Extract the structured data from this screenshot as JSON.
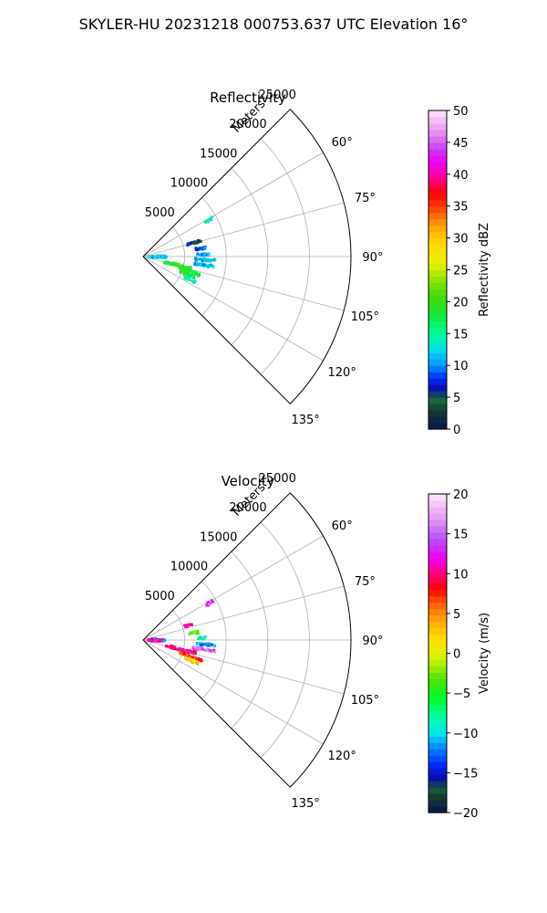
{
  "figure": {
    "suptitle": "SKYLER-HU  20231218  000753.637 UTC Elevation 16°"
  },
  "chart_data": [
    {
      "type": "polar-sector",
      "title": "Reflectivity",
      "radial_label": "Meters",
      "theta_ticks_deg": [
        60,
        75,
        90,
        105,
        120,
        135
      ],
      "theta_range_deg": [
        45,
        135
      ],
      "r_ticks": [
        5000,
        10000,
        15000,
        20000,
        25000
      ],
      "r_lim": [
        0,
        25000
      ],
      "grid": true,
      "colorbar": {
        "label": "Reflectivity dBZ",
        "min": 0,
        "max": 50,
        "ticks": [
          0,
          5,
          10,
          15,
          20,
          25,
          30,
          35,
          40,
          45,
          50
        ],
        "colormap": "pyart_HomeyerRainbow-like"
      },
      "echoes": [
        {
          "theta": 61,
          "r_range": [
            8500,
            9600
          ],
          "value": 14
        },
        {
          "theta": 75,
          "r_range": [
            5500,
            7200
          ],
          "value": 5
        },
        {
          "theta": 82,
          "r_range": [
            6300,
            7600
          ],
          "value": 8
        },
        {
          "theta": 88,
          "r_range": [
            6500,
            8000
          ],
          "value": 10
        },
        {
          "theta": 91,
          "r_range": [
            700,
            2800
          ],
          "value": 12
        },
        {
          "theta": 93,
          "r_range": [
            6200,
            8700
          ],
          "value": 12
        },
        {
          "theta": 98,
          "r_range": [
            6200,
            8600
          ],
          "value": 12
        },
        {
          "theta": 104,
          "r_range": [
            2600,
            6000
          ],
          "value": 19
        },
        {
          "theta": 108,
          "r_range": [
            4500,
            7200
          ],
          "value": 18
        },
        {
          "theta": 112,
          "r_range": [
            4800,
            6700
          ],
          "value": 19
        },
        {
          "theta": 116,
          "r_range": [
            5600,
            7000
          ],
          "value": 13
        }
      ]
    },
    {
      "type": "polar-sector",
      "title": "Velocity",
      "radial_label": "Meters",
      "theta_ticks_deg": [
        60,
        75,
        90,
        105,
        120,
        135
      ],
      "theta_range_deg": [
        45,
        135
      ],
      "r_ticks": [
        5000,
        10000,
        15000,
        20000,
        25000
      ],
      "r_lim": [
        0,
        25000
      ],
      "grid": true,
      "colorbar": {
        "label": "Velocity (m/s)",
        "min": -20,
        "max": 20,
        "ticks": [
          -20,
          -15,
          -10,
          -5,
          0,
          5,
          10,
          15,
          20
        ],
        "colormap": "pyart_BuDRd18-like"
      },
      "echoes": [
        {
          "theta": 61,
          "r_range": [
            8500,
            9600
          ],
          "value": 14
        },
        {
          "theta": 72,
          "r_range": [
            5200,
            6200
          ],
          "value": 10
        },
        {
          "theta": 82,
          "r_range": [
            5600,
            6700
          ],
          "value": -4
        },
        {
          "theta": 88,
          "r_range": [
            6500,
            7600
          ],
          "value": -8
        },
        {
          "theta": 90,
          "r_range": [
            700,
            2700
          ],
          "value": -13
        },
        {
          "theta": 92,
          "r_range": [
            500,
            2300
          ],
          "value": 11
        },
        {
          "theta": 94,
          "r_range": [
            6500,
            8700
          ],
          "value": -11
        },
        {
          "theta": 99,
          "r_range": [
            6000,
            8800
          ],
          "value": 15
        },
        {
          "theta": 104,
          "r_range": [
            2800,
            6500
          ],
          "value": 10
        },
        {
          "theta": 109,
          "r_range": [
            4600,
            7500
          ],
          "value": 8
        },
        {
          "theta": 113,
          "r_range": [
            5400,
            7200
          ],
          "value": 2
        }
      ]
    }
  ]
}
